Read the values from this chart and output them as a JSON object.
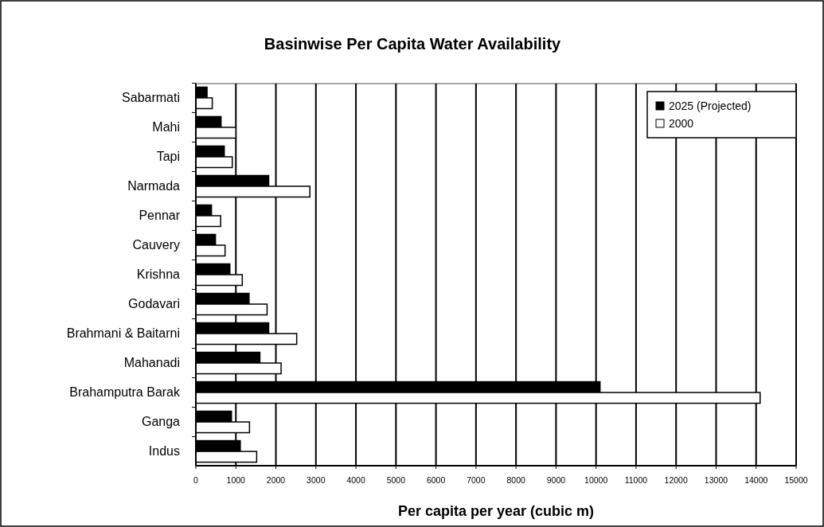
{
  "chart_data": {
    "type": "bar",
    "orientation": "horizontal",
    "title": "Basinwise Per Capita Water Availability",
    "xlabel": "Per capita per year (cubic m)",
    "categories": [
      "Sabarmati",
      "Mahi",
      "Tapi",
      "Narmada",
      "Pennar",
      "Cauvery",
      "Krishna",
      "Godavari",
      "Brahmani & Baitarni",
      "Mahanadi",
      "Brahamputra Barak",
      "Ganga",
      "Indus"
    ],
    "series": [
      {
        "name": "2025 (Projected)",
        "color": "#000000",
        "values": [
          280,
          630,
          710,
          1820,
          390,
          490,
          850,
          1330,
          1820,
          1600,
          10100,
          890,
          1110
        ]
      },
      {
        "name": "2000",
        "color": "#ffffff",
        "values": [
          410,
          1000,
          910,
          2850,
          620,
          730,
          1160,
          1780,
          2520,
          2130,
          14100,
          1340,
          1520
        ]
      }
    ],
    "xlim": [
      0,
      15000
    ],
    "xticks": [
      0,
      1000,
      2000,
      3000,
      4000,
      5000,
      6000,
      7000,
      8000,
      9000,
      10000,
      11000,
      12000,
      13000,
      14000,
      15000
    ],
    "grid": "x",
    "legend": "top right"
  }
}
